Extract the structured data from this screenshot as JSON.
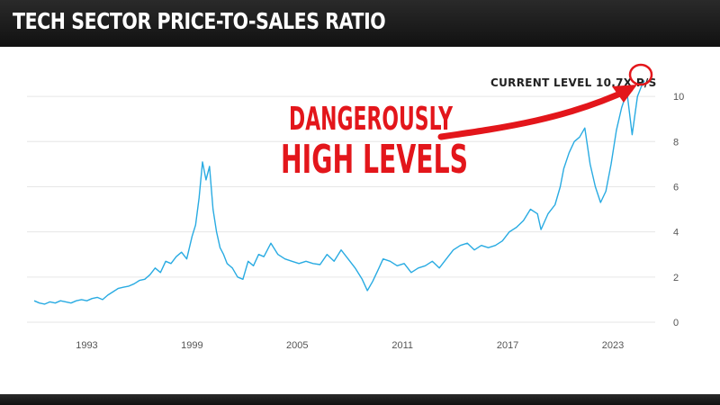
{
  "header": {
    "title": "TECH SECTOR PRICE-TO-SALES RATIO"
  },
  "colors": {
    "line": "#29abe2",
    "accent": "#e3161b",
    "grid": "#e6e6e6",
    "header_bg": "#151515"
  },
  "chart_data": {
    "type": "line",
    "title": "TECH SECTOR PRICE-TO-SALES RATIO",
    "xlabel": "",
    "ylabel": "",
    "xlim": [
      1990,
      2024.9
    ],
    "ylim": [
      0,
      11
    ],
    "x_ticks": [
      1993,
      1999,
      2005,
      2011,
      2017,
      2023
    ],
    "y_ticks": [
      0,
      2,
      4,
      6,
      8,
      10
    ],
    "grid": true,
    "y_axis_side": "right",
    "series": [
      {
        "name": "",
        "x": [
          1990.0,
          1990.3,
          1990.6,
          1990.9,
          1991.2,
          1991.5,
          1991.8,
          1992.1,
          1992.4,
          1992.7,
          1993.0,
          1993.3,
          1993.6,
          1993.9,
          1994.2,
          1994.5,
          1994.8,
          1995.1,
          1995.4,
          1995.7,
          1996.0,
          1996.3,
          1996.6,
          1996.9,
          1997.2,
          1997.5,
          1997.8,
          1998.1,
          1998.4,
          1998.7,
          1999.0,
          1999.2,
          1999.4,
          1999.6,
          1999.8,
          2000.0,
          2000.2,
          2000.4,
          2000.6,
          2000.8,
          2001.0,
          2001.3,
          2001.6,
          2001.9,
          2002.2,
          2002.5,
          2002.8,
          2003.1,
          2003.5,
          2003.9,
          2004.3,
          2004.7,
          2005.1,
          2005.5,
          2005.9,
          2006.3,
          2006.7,
          2007.1,
          2007.5,
          2007.9,
          2008.3,
          2008.7,
          2009.0,
          2009.3,
          2009.6,
          2009.9,
          2010.3,
          2010.7,
          2011.1,
          2011.5,
          2011.9,
          2012.3,
          2012.7,
          2013.1,
          2013.5,
          2013.9,
          2014.3,
          2014.7,
          2015.1,
          2015.5,
          2015.9,
          2016.3,
          2016.7,
          2017.1,
          2017.5,
          2017.9,
          2018.3,
          2018.7,
          2018.9,
          2019.3,
          2019.7,
          2020.0,
          2020.2,
          2020.5,
          2020.8,
          2021.1,
          2021.4,
          2021.7,
          2022.0,
          2022.3,
          2022.6,
          2022.9,
          2023.2,
          2023.5,
          2023.8,
          2024.1,
          2024.4,
          2024.6,
          2024.8
        ],
        "values": [
          0.95,
          0.85,
          0.8,
          0.9,
          0.85,
          0.95,
          0.9,
          0.85,
          0.95,
          1.0,
          0.95,
          1.05,
          1.1,
          1.0,
          1.2,
          1.35,
          1.5,
          1.55,
          1.6,
          1.7,
          1.85,
          1.9,
          2.1,
          2.4,
          2.2,
          2.7,
          2.6,
          2.9,
          3.1,
          2.8,
          3.8,
          4.3,
          5.5,
          7.1,
          6.3,
          6.9,
          5.0,
          4.0,
          3.3,
          3.0,
          2.6,
          2.4,
          2.0,
          1.9,
          2.7,
          2.5,
          3.0,
          2.9,
          3.5,
          3.0,
          2.8,
          2.7,
          2.6,
          2.7,
          2.6,
          2.55,
          3.0,
          2.7,
          3.2,
          2.8,
          2.4,
          1.9,
          1.4,
          1.8,
          2.3,
          2.8,
          2.7,
          2.5,
          2.6,
          2.2,
          2.4,
          2.5,
          2.7,
          2.4,
          2.8,
          3.2,
          3.4,
          3.5,
          3.2,
          3.4,
          3.3,
          3.4,
          3.6,
          4.0,
          4.2,
          4.5,
          5.0,
          4.8,
          4.1,
          4.8,
          5.2,
          6.0,
          6.8,
          7.5,
          8.0,
          8.2,
          8.6,
          7.0,
          6.0,
          5.3,
          5.8,
          7.0,
          8.5,
          9.5,
          10.2,
          8.3,
          10.0,
          10.4,
          10.7
        ]
      }
    ],
    "annotations": {
      "current_level": "CURRENT LEVEL 10.7X P/S",
      "headline_line1": "DANGEROUSLY",
      "headline_line2": "HIGH LEVELS"
    }
  }
}
